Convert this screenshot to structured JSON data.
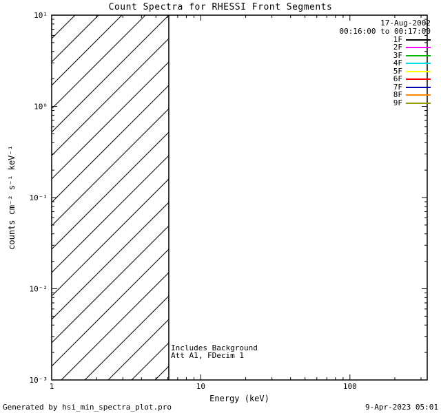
{
  "title": "Count Spectra for RHESSI Front Segments",
  "chart_data": {
    "type": "line",
    "title": "Count Spectra for RHESSI Front Segments",
    "xlabel": "Energy (keV)",
    "ylabel": "counts cm⁻² s⁻¹ keV⁻¹",
    "xscale": "log",
    "yscale": "log",
    "xlim": [
      1,
      330
    ],
    "ylim": [
      0.001,
      10
    ],
    "x_ticks": [
      {
        "value": 1,
        "label": "1"
      },
      {
        "value": 10,
        "label": "10"
      },
      {
        "value": 100,
        "label": "100"
      }
    ],
    "y_ticks": [
      {
        "value": 0.001,
        "label": "10⁻³"
      },
      {
        "value": 0.01,
        "label": "10⁻²"
      },
      {
        "value": 0.1,
        "label": "10⁻¹"
      },
      {
        "value": 1,
        "label": "10⁰"
      },
      {
        "value": 10,
        "label": "10¹"
      }
    ],
    "series": [],
    "hatched_region": {
      "x_start": 1,
      "x_end": 6.1,
      "style": "diagonal-line-fill"
    },
    "vertical_line_x": 6.1,
    "annotations": [
      "Includes Background",
      "Att A1, FDecim 1"
    ],
    "legend": {
      "position": "top-right",
      "date": "17-Aug-2002",
      "time_range": "00:16:00 to 00:17:00",
      "entries": [
        {
          "label": "1F",
          "color": "#000000"
        },
        {
          "label": "2F",
          "color": "#ff00ff"
        },
        {
          "label": "3F",
          "color": "#00bb00"
        },
        {
          "label": "4F",
          "color": "#00e0e0"
        },
        {
          "label": "5F",
          "color": "#ffff00"
        },
        {
          "label": "6F",
          "color": "#ff0000"
        },
        {
          "label": "7F",
          "color": "#0000b0"
        },
        {
          "label": "8F",
          "color": "#ff8800"
        },
        {
          "label": "9F",
          "color": "#999900"
        }
      ]
    }
  },
  "footer": {
    "left": "Generated by hsi_min_spectra_plot.pro",
    "right": "9-Apr-2023 05:01"
  }
}
